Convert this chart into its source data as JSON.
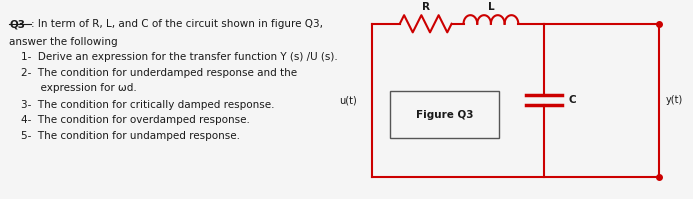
{
  "bg_color": "#f5f5f5",
  "text_color": "#1a1a1a",
  "circuit_color": "#cc0000",
  "title": "Q3",
  "title_colon": ": In term of R, L, and C of the circuit shown in figure Q3,",
  "line2": "answer the following",
  "items": [
    "1-  Derive an expression for the transfer function Y (s) /U (s).",
    "2-  The condition for underdamped response and the",
    "      expression for ωd.",
    "3-  The condition for critically damped response.",
    "4-  The condition for overdamped response.",
    "5-  The condition for undamped response."
  ],
  "fig_label": "Figure Q3",
  "R_label": "R",
  "L_label": "L",
  "C_label": "C",
  "u_label": "u(t)",
  "y_label": "y(t)"
}
